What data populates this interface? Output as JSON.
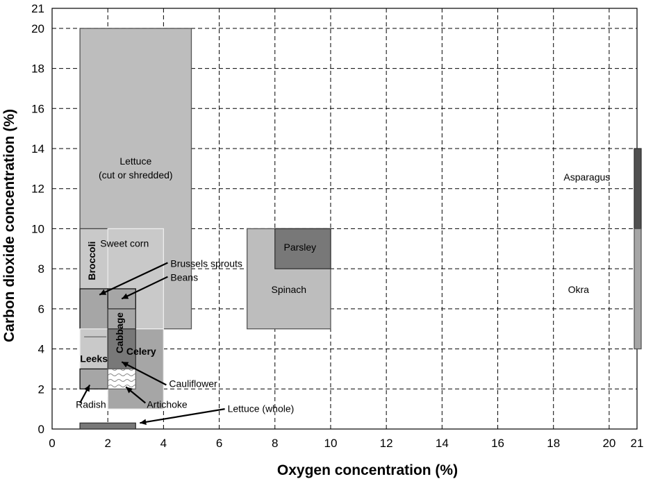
{
  "chart_data": {
    "type": "range-rectangles",
    "xlabel": "Oxygen concentration (%)",
    "ylabel": "Carbon dioxide concentration (%)",
    "xlim": [
      0,
      21
    ],
    "ylim": [
      0,
      21
    ],
    "x_ticks": [
      0,
      2,
      4,
      6,
      8,
      10,
      12,
      14,
      16,
      18,
      20,
      21
    ],
    "y_ticks": [
      0,
      2,
      4,
      6,
      8,
      10,
      12,
      14,
      16,
      18,
      20,
      21
    ],
    "grid": true,
    "colors": {
      "light": "#bdbdbd",
      "lighter": "#c9c9c9",
      "medium": "#a6a6a6",
      "dark": "#787878",
      "darker": "#505050"
    },
    "regions": [
      {
        "key": "lettuce_cut",
        "label": "Lettuce\n(cut or shredded)",
        "o2": [
          1,
          5
        ],
        "co2": [
          5,
          20
        ],
        "color": "light",
        "stroke": "#555555"
      },
      {
        "key": "broccoli",
        "label": "Broccoli",
        "o2": [
          1,
          2
        ],
        "co2": [
          5,
          10
        ],
        "color": "lighter",
        "stroke": "#444444"
      },
      {
        "key": "sweet_corn",
        "label": "Sweet corn",
        "o2": [
          2,
          4
        ],
        "co2": [
          5,
          10
        ],
        "color": "lighter",
        "stroke": "#eeeeee"
      },
      {
        "key": "brussels_sprouts",
        "label": "Brussels sprouts",
        "o2": [
          1,
          2
        ],
        "co2": [
          5,
          7
        ],
        "color": "medium",
        "stroke": "#111111"
      },
      {
        "key": "beans",
        "label": "Beans",
        "o2": [
          2,
          3
        ],
        "co2": [
          5,
          7
        ],
        "color": "medium",
        "stroke": "#111111"
      },
      {
        "key": "cabbage",
        "label": "Cabbage",
        "o2": [
          2,
          3
        ],
        "co2": [
          3,
          6
        ],
        "color": "medium",
        "stroke": "#333333"
      },
      {
        "key": "leeks",
        "label": "Leeks",
        "o2": [
          1,
          2
        ],
        "co2": [
          3,
          5
        ],
        "color": "lighter",
        "stroke": "#eeeeee"
      },
      {
        "key": "celery",
        "label": "Celery",
        "o2": [
          2,
          4
        ],
        "co2": [
          1,
          5
        ],
        "color": "medium",
        "stroke": "#eeeeee"
      },
      {
        "key": "cauliflower",
        "label": "Cauliflower",
        "o2": [
          2,
          3
        ],
        "co2": [
          3,
          5
        ],
        "color": "dark",
        "stroke": "#333333"
      },
      {
        "key": "radish",
        "label": "Radish",
        "o2": [
          1,
          2
        ],
        "co2": [
          2,
          3
        ],
        "color": "medium",
        "stroke": "#111111"
      },
      {
        "key": "artichoke",
        "label": "Artichoke",
        "o2": [
          2,
          3
        ],
        "co2": [
          2,
          3
        ],
        "color": "hatch",
        "stroke": "#666666"
      },
      {
        "key": "lettuce_whole",
        "label": "Lettuce (whole)",
        "o2": [
          1,
          3
        ],
        "co2": [
          0,
          0.3
        ],
        "color": "dark",
        "stroke": "#333333"
      },
      {
        "key": "spinach",
        "label": "Spinach",
        "o2": [
          7,
          10
        ],
        "co2": [
          5,
          10
        ],
        "color": "light",
        "stroke": "#555555"
      },
      {
        "key": "parsley",
        "label": "Parsley",
        "o2": [
          8,
          10
        ],
        "co2": [
          8,
          10
        ],
        "color": "dark",
        "stroke": "#333333"
      },
      {
        "key": "asparagus",
        "label": "Asparagus",
        "o2": [
          21,
          21
        ],
        "co2": [
          10,
          14
        ],
        "color": "darker",
        "stroke": "#333333"
      },
      {
        "key": "okra",
        "label": "Okra",
        "o2": [
          21,
          21
        ],
        "co2": [
          4,
          10
        ],
        "color": "medium",
        "stroke": "#555555"
      }
    ]
  }
}
